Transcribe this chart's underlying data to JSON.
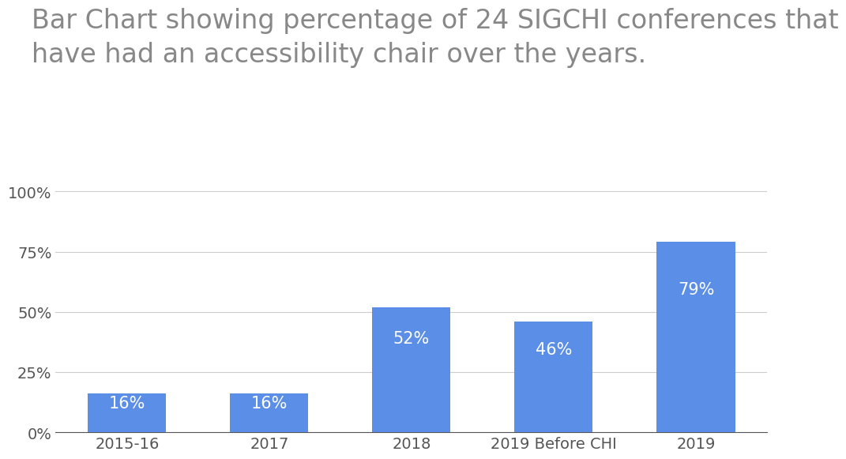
{
  "categories": [
    "2015-16",
    "2017",
    "2018",
    "2019 Before CHI",
    "2019"
  ],
  "values": [
    16,
    16,
    52,
    46,
    79
  ],
  "bar_color": "#5B8EE6",
  "title_line1": "Bar Chart showing percentage of 24 SIGCHI conferences that",
  "title_line2": "have had an accessibility chair over the years.",
  "title_fontsize": 24,
  "title_color": "#888888",
  "yticks": [
    0,
    25,
    50,
    75,
    100
  ],
  "ytick_labels": [
    "0%",
    "25%",
    "50%",
    "75%",
    "100%"
  ],
  "ylim": [
    0,
    108
  ],
  "bar_label_color": "#ffffff",
  "bar_label_fontsize": 15,
  "tick_label_fontsize": 14,
  "tick_color": "#555555",
  "background_color": "#ffffff",
  "grid_color": "#cccccc",
  "bar_width": 0.55
}
